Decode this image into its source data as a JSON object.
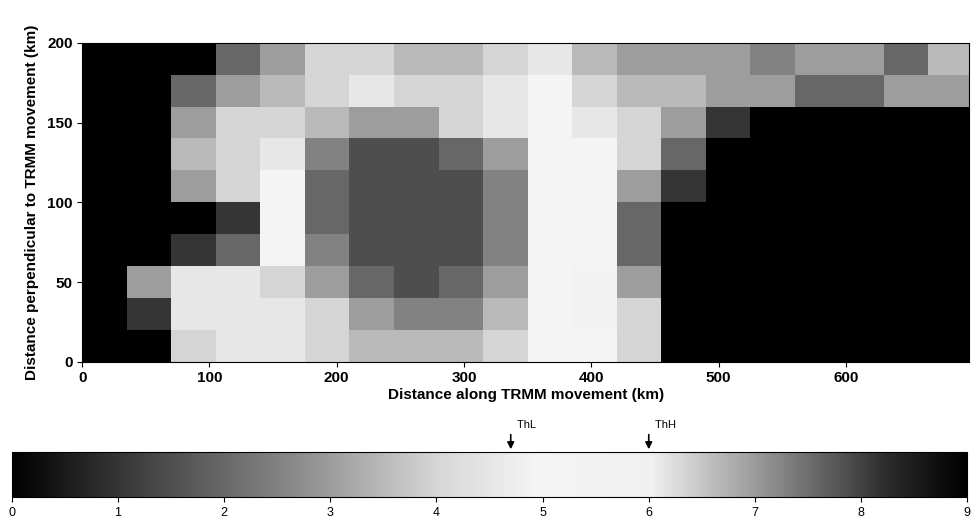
{
  "chart_data": {
    "type": "heatmap",
    "x_label": "Distance along TRMM movement (km)",
    "y_label": "Distance perpendicular to TRMM movement (km)",
    "xlim": [
      0,
      697
    ],
    "xticks": [
      0,
      100,
      200,
      300,
      400,
      500,
      600
    ],
    "ylim": [
      0,
      200
    ],
    "yticks": [
      0,
      50,
      100,
      150,
      200
    ],
    "x_edges": [
      0,
      35,
      70,
      105,
      140,
      175,
      210,
      245,
      280,
      315,
      350,
      385,
      420,
      455,
      490,
      525,
      560,
      595,
      630,
      665,
      700
    ],
    "y_edges": [
      0,
      20,
      40,
      60,
      80,
      100,
      120,
      140,
      160,
      180,
      200
    ],
    "cells": [
      [
        0,
        0,
        4,
        4.5,
        4.5,
        4,
        3.5,
        3.5,
        3.5,
        4,
        5,
        5,
        4,
        0,
        0,
        0,
        0,
        0,
        0,
        0
      ],
      [
        0,
        1,
        4.5,
        4.5,
        4.5,
        4,
        3,
        2.5,
        2.5,
        3.5,
        5,
        5.5,
        4,
        0,
        0,
        0,
        0,
        0,
        0,
        0
      ],
      [
        0,
        3,
        4.5,
        4.5,
        4,
        3,
        2,
        1.5,
        2,
        3,
        5,
        5.5,
        3,
        0,
        0,
        0,
        0,
        0,
        0,
        0
      ],
      [
        0,
        0,
        1,
        2,
        5,
        2.5,
        1.5,
        1.5,
        1.5,
        2.5,
        5,
        5,
        2,
        0,
        0,
        0,
        0,
        0,
        0,
        0
      ],
      [
        0,
        0,
        0,
        1,
        5,
        2,
        1.5,
        1.5,
        1.5,
        2.5,
        5,
        5,
        2,
        0,
        0,
        0,
        0,
        0,
        0,
        0
      ],
      [
        0,
        0,
        3,
        4,
        5,
        2,
        1.5,
        1.5,
        1.5,
        2.5,
        5,
        5,
        3,
        1,
        0,
        0,
        0,
        0,
        0,
        0
      ],
      [
        0,
        0,
        3.5,
        4,
        4.5,
        2.5,
        1.5,
        1.5,
        2,
        3,
        5,
        5,
        4,
        2,
        0,
        0,
        0,
        0,
        0,
        0
      ],
      [
        0,
        0,
        3,
        4,
        4,
        3.5,
        3,
        3,
        4,
        4.5,
        5,
        4.5,
        4,
        3,
        1,
        0,
        0,
        0,
        0,
        0
      ],
      [
        0,
        0,
        2,
        3,
        3.5,
        4,
        4.5,
        4,
        4,
        4.5,
        5,
        4,
        3.5,
        3.5,
        3,
        3,
        2,
        2,
        3,
        3
      ],
      [
        0,
        0,
        0,
        2,
        3,
        4,
        4,
        3.5,
        3.5,
        4,
        4.5,
        3.5,
        3,
        3,
        3,
        2.5,
        3,
        3,
        2,
        3.5
      ]
    ],
    "colorbar": {
      "range": [
        0,
        9
      ],
      "ticks": [
        0,
        1,
        2,
        3,
        4,
        5,
        6,
        7,
        8,
        9
      ]
    },
    "thresholds": [
      {
        "label": "ThL",
        "value": 4.7
      },
      {
        "label": "ThH",
        "value": 6.0
      }
    ]
  }
}
